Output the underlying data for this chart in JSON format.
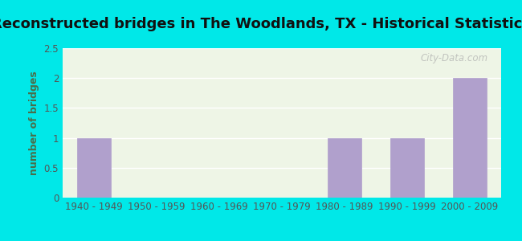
{
  "title": "Reconstructed bridges in The Woodlands, TX - Historical Statistics",
  "categories": [
    "1940 - 1949",
    "1950 - 1959",
    "1960 - 1969",
    "1970 - 1979",
    "1980 - 1989",
    "1990 - 1999",
    "2000 - 2009"
  ],
  "values": [
    1,
    0,
    0,
    0,
    1,
    1,
    2
  ],
  "bar_color": "#b0a0cc",
  "bar_edge_color": "#b0a0cc",
  "ylabel": "number of bridges",
  "ylim": [
    0,
    2.5
  ],
  "yticks": [
    0,
    0.5,
    1,
    1.5,
    2,
    2.5
  ],
  "background_outer": "#00e8e8",
  "background_plot": "#eef5e6",
  "grid_color": "#ffffff",
  "title_fontsize": 13,
  "ylabel_fontsize": 9,
  "tick_fontsize": 8.5,
  "ylabel_color": "#4a6e4a",
  "title_color": "#111111",
  "tick_color": "#555555",
  "watermark": "City-Data.com"
}
